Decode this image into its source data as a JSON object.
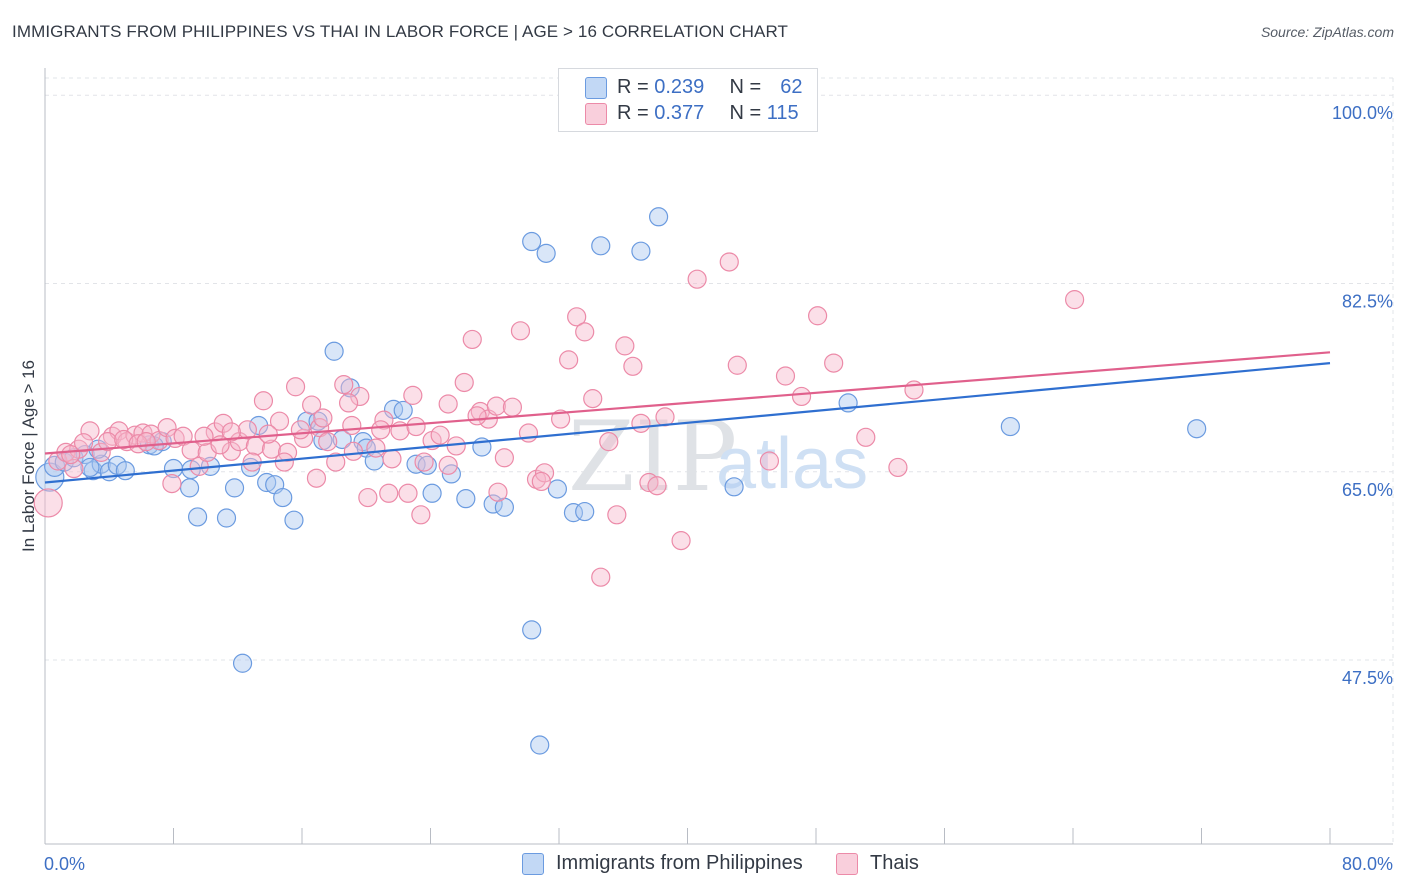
{
  "title": "IMMIGRANTS FROM PHILIPPINES VS THAI IN LABOR FORCE | AGE > 16 CORRELATION CHART",
  "source": "Source: ZipAtlas.com",
  "watermark": {
    "zip": "ZIP",
    "atlas": "atlas"
  },
  "legend": {
    "rows": [
      {
        "r_label": "R =",
        "r_value": "0.239",
        "n_label": "N =",
        "n_value": "62"
      },
      {
        "r_label": "R =",
        "r_value": "0.377",
        "n_label": "N =",
        "n_value": "115"
      }
    ]
  },
  "colors": {
    "blue_fill": "#aac8f0",
    "blue_stroke": "#6b9be0",
    "blue_line": "#2f6fd0",
    "pink_fill": "#f6b9cc",
    "pink_stroke": "#ec8aa8",
    "pink_line": "#e0608c",
    "axis_text": "#3d6fc4",
    "grid": "#e2e4e8"
  },
  "chart_data": {
    "type": "scatter",
    "title": "IMMIGRANTS FROM PHILIPPINES VS THAI IN LABOR FORCE | AGE > 16 CORRELATION CHART",
    "xlabel": "",
    "ylabel": "In Labor Force | Age > 16",
    "xlim": [
      0,
      80
    ],
    "ylim": [
      30.4,
      101.6
    ],
    "x_tick_labels": [
      "0.0%",
      "80.0%"
    ],
    "y_ticks": [
      47.5,
      65.0,
      82.5,
      100.0
    ],
    "y_tick_labels": [
      "47.5%",
      "65.0%",
      "82.5%",
      "100.0%"
    ],
    "grid": true,
    "legend_position": "top-center",
    "series": [
      {
        "name": "Immigrants from Philippines",
        "color": "blue",
        "trend": [
          [
            0,
            64.0
          ],
          [
            80,
            75.1
          ]
        ],
        "points": [
          [
            0.3,
            64.5,
            14
          ],
          [
            0.6,
            65.5,
            10
          ],
          [
            1.2,
            65.9,
            9
          ],
          [
            1.8,
            66.3,
            9
          ],
          [
            2.5,
            66.6,
            9
          ],
          [
            3.0,
            65.1,
            9
          ],
          [
            3.5,
            65.7,
            9
          ],
          [
            4.0,
            65.0,
            9
          ],
          [
            4.5,
            65.6,
            9
          ],
          [
            5.0,
            65.1,
            9
          ],
          [
            6.5,
            67.5,
            9
          ],
          [
            7.3,
            67.8,
            9
          ],
          [
            8.0,
            65.3,
            9
          ],
          [
            9.0,
            63.5,
            9
          ],
          [
            9.5,
            60.8,
            9
          ],
          [
            10.3,
            65.5,
            9
          ],
          [
            11.3,
            60.7,
            9
          ],
          [
            11.8,
            63.5,
            9
          ],
          [
            12.3,
            47.2,
            9
          ],
          [
            12.8,
            65.4,
            9
          ],
          [
            13.3,
            69.3,
            9
          ],
          [
            13.8,
            64.0,
            9
          ],
          [
            14.3,
            63.8,
            9
          ],
          [
            14.8,
            62.6,
            9
          ],
          [
            15.5,
            60.5,
            9
          ],
          [
            16.3,
            69.7,
            9
          ],
          [
            17.3,
            67.9,
            9
          ],
          [
            18.0,
            76.2,
            9
          ],
          [
            19.0,
            72.8,
            9
          ],
          [
            19.8,
            67.8,
            9
          ],
          [
            20.0,
            67.2,
            9
          ],
          [
            20.5,
            66.0,
            9
          ],
          [
            21.7,
            70.8,
            9
          ],
          [
            22.3,
            70.7,
            9
          ],
          [
            23.1,
            65.7,
            9
          ],
          [
            24.1,
            63.0,
            9
          ],
          [
            25.3,
            64.8,
            9
          ],
          [
            26.2,
            62.5,
            9
          ],
          [
            27.2,
            67.3,
            9
          ],
          [
            27.9,
            62.0,
            9
          ],
          [
            28.6,
            61.7,
            9
          ],
          [
            30.3,
            50.3,
            9
          ],
          [
            30.3,
            86.4,
            9
          ],
          [
            31.2,
            85.3,
            9
          ],
          [
            31.9,
            63.4,
            9
          ],
          [
            32.9,
            61.2,
            9
          ],
          [
            34.6,
            86.0,
            9
          ],
          [
            37.1,
            85.5,
            9
          ],
          [
            38.2,
            88.7,
            9
          ],
          [
            50.0,
            71.4,
            9
          ],
          [
            60.1,
            69.2,
            9
          ],
          [
            71.7,
            69.0,
            9
          ],
          [
            42.9,
            63.6,
            9
          ],
          [
            33.6,
            61.3,
            9
          ],
          [
            30.8,
            39.6,
            9
          ],
          [
            9.1,
            65.2,
            9
          ],
          [
            18.5,
            68.0,
            9
          ],
          [
            17.0,
            69.7,
            9
          ],
          [
            2.8,
            65.4,
            9
          ],
          [
            6.8,
            67.4,
            9
          ],
          [
            3.3,
            67.1,
            9
          ],
          [
            23.8,
            65.6,
            9
          ]
        ]
      },
      {
        "name": "Thais",
        "color": "pink",
        "trend": [
          [
            0,
            66.7
          ],
          [
            80,
            76.1
          ]
        ],
        "points": [
          [
            0.2,
            62.1,
            14
          ],
          [
            0.8,
            66.0,
            9
          ],
          [
            1.3,
            66.8,
            9
          ],
          [
            1.8,
            65.3,
            9
          ],
          [
            2.1,
            67.1,
            9
          ],
          [
            2.8,
            68.8,
            9
          ],
          [
            3.5,
            66.8,
            9
          ],
          [
            4.2,
            68.3,
            9
          ],
          [
            4.6,
            68.8,
            9
          ],
          [
            5.1,
            67.8,
            9
          ],
          [
            5.6,
            68.4,
            9
          ],
          [
            6.1,
            68.6,
            9
          ],
          [
            6.6,
            68.5,
            9
          ],
          [
            7.1,
            67.9,
            9
          ],
          [
            7.6,
            69.1,
            9
          ],
          [
            8.1,
            68.1,
            9
          ],
          [
            8.6,
            68.3,
            9
          ],
          [
            9.1,
            67.0,
            9
          ],
          [
            9.6,
            65.5,
            9
          ],
          [
            10.1,
            66.8,
            9
          ],
          [
            10.6,
            68.7,
            9
          ],
          [
            11.1,
            69.5,
            9
          ],
          [
            11.6,
            66.9,
            9
          ],
          [
            12.1,
            67.8,
            9
          ],
          [
            12.6,
            68.9,
            9
          ],
          [
            13.1,
            67.4,
            9
          ],
          [
            13.6,
            71.6,
            9
          ],
          [
            14.1,
            67.1,
            9
          ],
          [
            14.6,
            69.7,
            9
          ],
          [
            15.1,
            66.8,
            9
          ],
          [
            15.6,
            72.9,
            9
          ],
          [
            16.1,
            68.1,
            9
          ],
          [
            16.6,
            71.2,
            9
          ],
          [
            17.1,
            69.1,
            9
          ],
          [
            17.6,
            67.8,
            9
          ],
          [
            18.1,
            65.9,
            9
          ],
          [
            18.6,
            73.1,
            9
          ],
          [
            19.1,
            69.3,
            9
          ],
          [
            19.6,
            72.0,
            9
          ],
          [
            20.1,
            62.6,
            9
          ],
          [
            20.6,
            67.2,
            9
          ],
          [
            21.1,
            69.8,
            9
          ],
          [
            21.6,
            66.2,
            9
          ],
          [
            22.1,
            68.8,
            9
          ],
          [
            22.6,
            63.0,
            9
          ],
          [
            23.1,
            69.2,
            9
          ],
          [
            23.6,
            65.9,
            9
          ],
          [
            24.1,
            67.9,
            9
          ],
          [
            24.6,
            68.4,
            9
          ],
          [
            25.1,
            71.3,
            9
          ],
          [
            25.6,
            67.4,
            9
          ],
          [
            26.1,
            73.3,
            9
          ],
          [
            26.6,
            77.3,
            9
          ],
          [
            27.1,
            70.6,
            9
          ],
          [
            27.6,
            69.9,
            9
          ],
          [
            28.1,
            71.1,
            9
          ],
          [
            28.6,
            66.3,
            9
          ],
          [
            29.1,
            71.0,
            9
          ],
          [
            29.6,
            78.1,
            9
          ],
          [
            30.1,
            68.6,
            9
          ],
          [
            30.6,
            64.3,
            9
          ],
          [
            31.1,
            64.9,
            9
          ],
          [
            32.1,
            69.9,
            9
          ],
          [
            32.6,
            75.4,
            9
          ],
          [
            33.1,
            79.4,
            9
          ],
          [
            33.6,
            78.0,
            9
          ],
          [
            34.1,
            71.8,
            9
          ],
          [
            34.6,
            55.2,
            9
          ],
          [
            35.1,
            67.8,
            9
          ],
          [
            35.6,
            61.0,
            9
          ],
          [
            36.1,
            76.7,
            9
          ],
          [
            36.6,
            74.8,
            9
          ],
          [
            37.1,
            69.5,
            9
          ],
          [
            37.6,
            64.0,
            9
          ],
          [
            38.1,
            63.7,
            9
          ],
          [
            38.6,
            70.1,
            9
          ],
          [
            39.6,
            58.6,
            9
          ],
          [
            40.6,
            82.9,
            9
          ],
          [
            42.6,
            84.5,
            9
          ],
          [
            43.1,
            74.9,
            9
          ],
          [
            45.1,
            66.0,
            9
          ],
          [
            46.1,
            73.9,
            9
          ],
          [
            47.1,
            72.0,
            9
          ],
          [
            48.1,
            79.5,
            9
          ],
          [
            49.1,
            75.1,
            9
          ],
          [
            51.1,
            68.2,
            9
          ],
          [
            53.1,
            65.4,
            9
          ],
          [
            54.1,
            72.6,
            9
          ],
          [
            64.1,
            81.0,
            9
          ],
          [
            11.6,
            68.7,
            9
          ],
          [
            12.9,
            65.9,
            9
          ],
          [
            15.9,
            68.9,
            9
          ],
          [
            17.3,
            70.0,
            9
          ],
          [
            19.2,
            66.9,
            9
          ],
          [
            21.4,
            63.0,
            9
          ],
          [
            23.4,
            61.0,
            9
          ],
          [
            25.1,
            65.6,
            9
          ],
          [
            26.9,
            70.2,
            9
          ],
          [
            28.2,
            63.1,
            9
          ],
          [
            30.9,
            64.1,
            9
          ],
          [
            1.6,
            66.6,
            9
          ],
          [
            2.4,
            67.7,
            9
          ],
          [
            3.9,
            67.8,
            9
          ],
          [
            4.9,
            68.0,
            9
          ],
          [
            5.8,
            67.6,
            9
          ],
          [
            6.3,
            67.8,
            9
          ],
          [
            7.9,
            63.9,
            9
          ],
          [
            9.9,
            68.3,
            9
          ],
          [
            10.9,
            67.5,
            9
          ],
          [
            13.9,
            68.5,
            9
          ],
          [
            14.9,
            65.9,
            9
          ],
          [
            16.9,
            64.4,
            9
          ],
          [
            18.9,
            71.4,
            9
          ],
          [
            20.9,
            68.9,
            9
          ],
          [
            22.9,
            72.1,
            9
          ]
        ]
      }
    ]
  }
}
